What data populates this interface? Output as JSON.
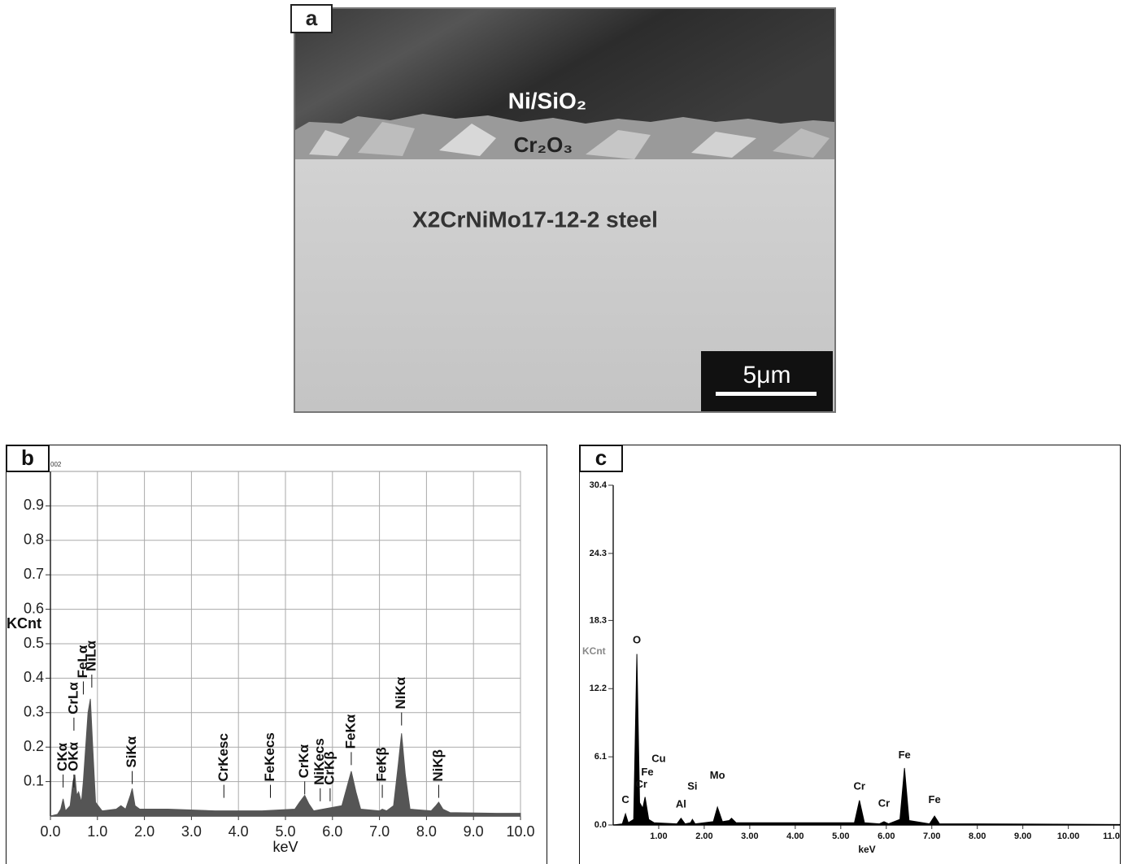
{
  "image_panel": {
    "panel_label": "a",
    "layer_labels": [
      "Ni/SiO₂",
      "Cr₂O₃",
      "X2CrNiMo17-12-2 steel"
    ],
    "scale_bar": "5μm"
  },
  "chart_data": [
    {
      "type": "area",
      "panel_label": "b",
      "note": "002",
      "y_label": "KCnt",
      "x_label": "keV",
      "xlim": [
        0,
        10
      ],
      "ylim": [
        0,
        1.0
      ],
      "xticks": [
        {
          "value": 0,
          "label": "0.0"
        },
        {
          "value": 1,
          "label": "1.0"
        },
        {
          "value": 2,
          "label": "2.0"
        },
        {
          "value": 3,
          "label": "3.0"
        },
        {
          "value": 4,
          "label": "4.0"
        },
        {
          "value": 5,
          "label": "5.0"
        },
        {
          "value": 6,
          "label": "6.0"
        },
        {
          "value": 7,
          "label": "7.0"
        },
        {
          "value": 8,
          "label": "8.0"
        },
        {
          "value": 9,
          "label": "9.0"
        },
        {
          "value": 10,
          "label": "10.0"
        }
      ],
      "yticks": [
        0.1,
        0.2,
        0.3,
        0.4,
        0.5,
        0.6,
        0.7,
        0.8,
        0.9
      ],
      "grid": true,
      "series": [
        {
          "color": "#555555",
          "x": [
            0,
            0.15,
            0.22,
            0.27,
            0.32,
            0.42,
            0.48,
            0.52,
            0.56,
            0.6,
            0.66,
            0.7,
            0.75,
            0.8,
            0.85,
            0.9,
            0.96,
            1.1,
            1.4,
            1.5,
            1.6,
            1.7,
            1.74,
            1.8,
            1.9,
            2.5,
            3.5,
            4.5,
            5.2,
            5.3,
            5.41,
            5.5,
            5.6,
            6.2,
            6.3,
            6.4,
            6.5,
            6.6,
            7.0,
            7.06,
            7.15,
            7.3,
            7.4,
            7.47,
            7.55,
            7.65,
            8.1,
            8.2,
            8.26,
            8.35,
            8.5,
            9.5,
            10
          ],
          "values": [
            0,
            0.005,
            0.02,
            0.05,
            0.015,
            0.03,
            0.1,
            0.12,
            0.06,
            0.07,
            0.04,
            0.1,
            0.2,
            0.3,
            0.34,
            0.2,
            0.04,
            0.015,
            0.02,
            0.03,
            0.02,
            0.06,
            0.08,
            0.03,
            0.02,
            0.02,
            0.015,
            0.015,
            0.02,
            0.04,
            0.06,
            0.035,
            0.015,
            0.03,
            0.08,
            0.13,
            0.07,
            0.02,
            0.015,
            0.02,
            0.015,
            0.03,
            0.15,
            0.24,
            0.12,
            0.02,
            0.015,
            0.03,
            0.04,
            0.02,
            0.01,
            0.008,
            0.008
          ]
        }
      ],
      "annotations": [
        {
          "text": "CKα",
          "x": 0.27,
          "y": 0.13
        },
        {
          "text": "OKα",
          "x": 0.5,
          "y": 0.13
        },
        {
          "text": "CrLα",
          "x": 0.5,
          "y": 0.295
        },
        {
          "text": "FeLα",
          "x": 0.7,
          "y": 0.4
        },
        {
          "text": "NiLα",
          "x": 0.88,
          "y": 0.42
        },
        {
          "text": "SiKα",
          "x": 1.74,
          "y": 0.14
        },
        {
          "text": "CrKesc",
          "x": 3.69,
          "y": 0.1
        },
        {
          "text": "FeKecs",
          "x": 4.68,
          "y": 0.1
        },
        {
          "text": "CrKα",
          "x": 5.41,
          "y": 0.11
        },
        {
          "text": "NiKecs",
          "x": 5.74,
          "y": 0.09
        },
        {
          "text": "CrKβ",
          "x": 5.95,
          "y": 0.09
        },
        {
          "text": "FeKα",
          "x": 6.4,
          "y": 0.195
        },
        {
          "text": "FeKβ",
          "x": 7.06,
          "y": 0.1
        },
        {
          "text": "NiKα",
          "x": 7.47,
          "y": 0.31
        },
        {
          "text": "NiKβ",
          "x": 8.26,
          "y": 0.1
        }
      ]
    },
    {
      "type": "area",
      "panel_label": "c",
      "y_label": "KCnt",
      "x_label": "keV",
      "xlim": [
        0,
        11.15
      ],
      "ylim": [
        0,
        30.4
      ],
      "xticks": [
        {
          "value": 1,
          "label": "1.00"
        },
        {
          "value": 2,
          "label": "2.00"
        },
        {
          "value": 3,
          "label": "3.00"
        },
        {
          "value": 4,
          "label": "4.00"
        },
        {
          "value": 5,
          "label": "5.00"
        },
        {
          "value": 6,
          "label": "6.00"
        },
        {
          "value": 7,
          "label": "7.00"
        },
        {
          "value": 8,
          "label": "8.00"
        },
        {
          "value": 9,
          "label": "9.00"
        },
        {
          "value": 10,
          "label": "10.00"
        },
        {
          "value": 11,
          "label": "11.00"
        }
      ],
      "yticks": [
        {
          "value": 0,
          "label": "0.0"
        },
        6.1,
        12.2,
        18.3,
        24.3,
        30.4
      ],
      "grid": false,
      "series": [
        {
          "color": "#000000",
          "x": [
            0,
            0.2,
            0.27,
            0.33,
            0.45,
            0.52,
            0.58,
            0.65,
            0.7,
            0.78,
            0.9,
            1.4,
            1.49,
            1.58,
            1.7,
            1.74,
            1.8,
            2.2,
            2.29,
            2.4,
            2.55,
            2.6,
            2.7,
            5.3,
            5.41,
            5.52,
            5.85,
            5.95,
            6.05,
            6.3,
            6.4,
            6.5,
            6.95,
            7.06,
            7.17,
            8,
            11.15
          ],
          "values": [
            0,
            0.1,
            1.0,
            0.2,
            0.5,
            15.3,
            2,
            1.5,
            2.5,
            0.5,
            0.2,
            0.1,
            0.6,
            0.1,
            0.2,
            0.5,
            0.1,
            0.3,
            1.6,
            0.3,
            0.4,
            0.6,
            0.2,
            0.2,
            2.2,
            0.2,
            0.1,
            0.3,
            0.1,
            0.5,
            5.1,
            0.4,
            0.1,
            0.8,
            0.1,
            0.1,
            0.05
          ]
        }
      ],
      "annotations": [
        {
          "text": "C",
          "x": 0.27,
          "y": 2.2
        },
        {
          "text": "Cr",
          "x": 0.62,
          "y": 3.6
        },
        {
          "text": "Fe",
          "x": 0.75,
          "y": 4.7
        },
        {
          "text": "Cu",
          "x": 1.0,
          "y": 5.9
        },
        {
          "text": "O",
          "x": 0.52,
          "y": 16.5
        },
        {
          "text": "Al",
          "x": 1.49,
          "y": 1.8
        },
        {
          "text": "Si",
          "x": 1.74,
          "y": 3.4
        },
        {
          "text": "Mo",
          "x": 2.29,
          "y": 4.4
        },
        {
          "text": "Cr",
          "x": 5.41,
          "y": 3.4
        },
        {
          "text": "Cr",
          "x": 5.95,
          "y": 1.9
        },
        {
          "text": "Fe",
          "x": 6.4,
          "y": 6.2
        },
        {
          "text": "Fe",
          "x": 7.06,
          "y": 2.2
        }
      ]
    }
  ]
}
